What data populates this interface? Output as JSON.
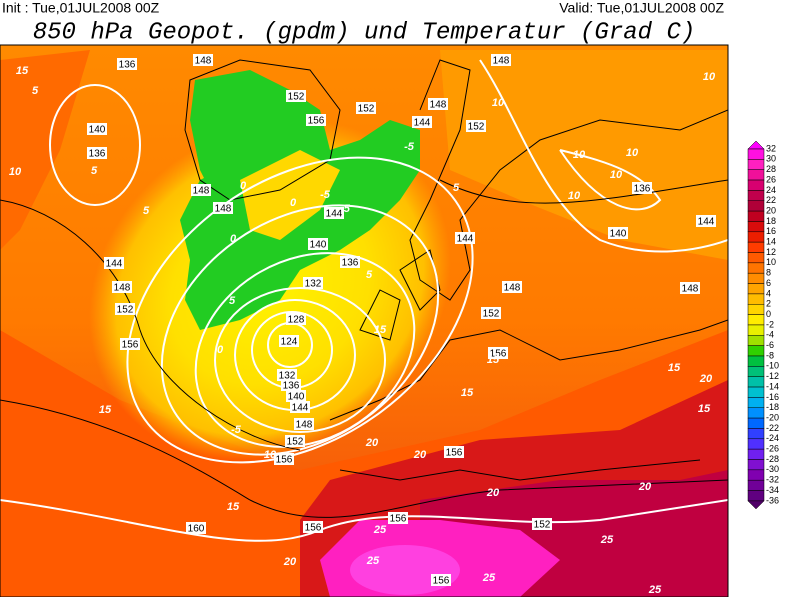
{
  "header": {
    "init": "Init : Tue,01JUL2008 00Z",
    "valid": "Valid: Tue,01JUL2008 00Z",
    "title": "850 hPa Geopot. (gpdm) und Temperatur (Grad C)"
  },
  "legend": {
    "labels": [
      "32",
      "30",
      "28",
      "26",
      "24",
      "22",
      "20",
      "18",
      "16",
      "14",
      "12",
      "10",
      "8",
      "6",
      "4",
      "2",
      "0",
      "-2",
      "-4",
      "-6",
      "-8",
      "-10",
      "-12",
      "-14",
      "-16",
      "-18",
      "-20",
      "-22",
      "-24",
      "-26",
      "-28",
      "-30",
      "-32",
      "-34",
      "-36"
    ],
    "colors": [
      "#ff00ff",
      "#ff10e0",
      "#ff20c0",
      "#f0109a",
      "#d80070",
      "#c0004c",
      "#b00038",
      "#c00020",
      "#d80c0c",
      "#ec1e00",
      "#ff3c00",
      "#ff5a00",
      "#ff7400",
      "#ff8c00",
      "#ffa400",
      "#ffbc00",
      "#ffd400",
      "#ffec00",
      "#e8f000",
      "#a0e000",
      "#30d000",
      "#00c040",
      "#00c078",
      "#00c0a8",
      "#00c0d0",
      "#00b0f0",
      "#0090ff",
      "#0068ff",
      "#3040ff",
      "#5030ff",
      "#7020f0",
      "#8010d0",
      "#8000b0",
      "#700098",
      "#600080",
      "#500068"
    ]
  },
  "map": {
    "height_labels": [
      "136",
      "148",
      "148",
      "140",
      "136",
      "156",
      "152",
      "152",
      "148",
      "144",
      "152",
      "148",
      "148",
      "144",
      "140",
      "136",
      "132",
      "144",
      "128",
      "124",
      "132",
      "136",
      "140",
      "144",
      "148",
      "152",
      "156",
      "156",
      "152",
      "156",
      "148",
      "136",
      "140",
      "144",
      "148",
      "160",
      "156",
      "156",
      "152",
      "156",
      "144",
      "148",
      "152",
      "156"
    ],
    "temp_labels": [
      "15",
      "5",
      "10",
      "5",
      "5",
      "10",
      "10",
      "10",
      "10",
      "5",
      "10",
      "10",
      "5",
      "0",
      "-5",
      "10",
      "15",
      "15",
      "20",
      "25",
      "25",
      "20",
      "20",
      "20",
      "15",
      "15",
      "20",
      "20",
      "25",
      "25",
      "25",
      "-5",
      "-5",
      "-5",
      "0",
      "0",
      "0",
      "5",
      "15",
      "15",
      "15"
    ]
  }
}
